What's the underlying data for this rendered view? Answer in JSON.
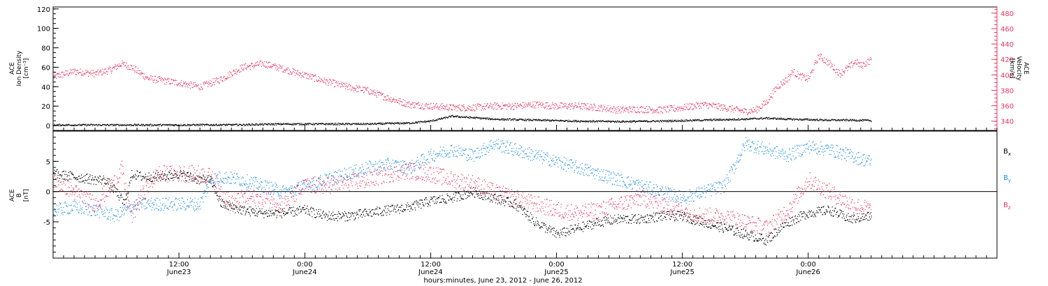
{
  "colors": {
    "black": "#000000",
    "blue": "#1f8fe6",
    "pink": "#e8345f"
  },
  "chart_data": [
    {
      "type": "scatter",
      "panel": "top",
      "ylabel": [
        "ACE",
        "Ion Density",
        "[cm⁻³]"
      ],
      "ylabel2": [
        "ACE",
        "Velocity",
        "[km/s]"
      ],
      "ylim": [
        -5,
        122
      ],
      "y2lim": [
        328,
        488
      ],
      "yticks": [
        0,
        20,
        40,
        60,
        80,
        100,
        120
      ],
      "y2ticks": [
        340,
        360,
        380,
        400,
        420,
        440,
        460,
        480
      ],
      "series": [
        {
          "axis": "left",
          "color": "black",
          "x": [
            0,
            6,
            12,
            18,
            22,
            26,
            30,
            34,
            36,
            38,
            42,
            46,
            50,
            54,
            58,
            60,
            62,
            64,
            66,
            68,
            70,
            72,
            74,
            76,
            78
          ],
          "y": [
            1,
            1,
            1,
            1.2,
            2,
            2,
            2,
            3,
            5,
            10,
            7,
            6,
            5,
            4.5,
            5,
            5.5,
            6,
            6.5,
            7,
            8,
            7,
            6.5,
            6,
            6,
            5.5
          ]
        },
        {
          "axis": "right",
          "color": "pink",
          "x": [
            0,
            2,
            4,
            5.5,
            6.5,
            7.5,
            9,
            12,
            14,
            16,
            18,
            20,
            22,
            24,
            26,
            28,
            30,
            32,
            34,
            36,
            38,
            40,
            42,
            44,
            46,
            48,
            50,
            52,
            54,
            56,
            58,
            60,
            62,
            64,
            66,
            67,
            68,
            69,
            70,
            70.5,
            71,
            72,
            73,
            74,
            75,
            76,
            76.5,
            77,
            78
          ],
          "y": [
            398,
            405,
            402,
            407,
            415,
            410,
            396,
            390,
            385,
            395,
            410,
            415,
            408,
            400,
            392,
            385,
            380,
            370,
            362,
            360,
            358,
            358,
            360,
            360,
            362,
            360,
            360,
            358,
            355,
            356,
            355,
            358,
            362,
            358,
            353,
            355,
            365,
            385,
            395,
            405,
            400,
            395,
            425,
            415,
            402,
            412,
            418,
            412,
            420
          ]
        }
      ]
    },
    {
      "type": "scatter",
      "panel": "bottom",
      "ylabel": [
        "ACE",
        "B",
        "[nT]"
      ],
      "ylim": [
        -11,
        10
      ],
      "yticks": [
        -5,
        0,
        5
      ],
      "legend": [
        {
          "label": "B",
          "sub": "x",
          "color": "black"
        },
        {
          "label": "B",
          "sub": "y",
          "color": "blue"
        },
        {
          "label": "B",
          "sub": "z",
          "color": "pink"
        }
      ],
      "series": [
        {
          "name": "Bx",
          "color": "black",
          "x": [
            0,
            2,
            4,
            5,
            6,
            6.8,
            7.5,
            8.5,
            10,
            12,
            14,
            15,
            16,
            18,
            20,
            22,
            24,
            26,
            28,
            30,
            32,
            34,
            36,
            38,
            40,
            42,
            44,
            46,
            48,
            50,
            51,
            52,
            54,
            56,
            58,
            60,
            62,
            64,
            66,
            68,
            70,
            72,
            74,
            76,
            78
          ],
          "y": [
            3,
            2.5,
            2,
            2,
            0,
            -2,
            3,
            2.5,
            2.5,
            3,
            2,
            2,
            -2,
            -3,
            -3.5,
            -3.5,
            -3,
            -4,
            -4,
            -3.5,
            -3,
            -2.5,
            -1.5,
            -1,
            0,
            -1,
            -2,
            -5,
            -7,
            -6,
            -5.5,
            -5,
            -4.5,
            -4.5,
            -4,
            -4,
            -5,
            -6,
            -7,
            -8,
            -5,
            -3.5,
            -3,
            -4.5,
            -4
          ]
        },
        {
          "name": "By",
          "color": "blue",
          "x": [
            0,
            2,
            4,
            5,
            6,
            7,
            8,
            9,
            10,
            12,
            14,
            15,
            16,
            18,
            20,
            22,
            24,
            26,
            28,
            30,
            32,
            34,
            35,
            36,
            38,
            40,
            42,
            44,
            46,
            48,
            50,
            52,
            54,
            56,
            58,
            60,
            62,
            64,
            66,
            68,
            70,
            72,
            74,
            76,
            78
          ],
          "y": [
            -3,
            -2.5,
            -3,
            -3.5,
            -4,
            -3,
            -2,
            -2,
            -2,
            -2,
            -2,
            2,
            2.5,
            2,
            1,
            0,
            1,
            2,
            3,
            4,
            4.5,
            4,
            5,
            6,
            7,
            6,
            8,
            7,
            6,
            5,
            4,
            3,
            2,
            1,
            0,
            -1,
            0,
            1,
            8,
            7,
            6,
            7.5,
            7,
            6,
            5
          ]
        },
        {
          "name": "Bz",
          "color": "pink",
          "x": [
            0,
            2,
            3,
            4,
            5,
            6,
            6.5,
            7,
            7.5,
            8,
            9,
            10,
            12,
            14,
            15,
            16,
            17,
            18,
            20,
            22,
            24,
            26,
            28,
            30,
            32,
            34,
            36,
            38,
            40,
            42,
            44,
            46,
            48,
            50,
            52,
            54,
            56,
            58,
            60,
            62,
            64,
            66,
            68,
            70,
            72,
            74,
            76,
            78
          ],
          "y": [
            2,
            0,
            -1,
            -2,
            0,
            2,
            4,
            -1,
            -4,
            -2,
            1,
            3,
            3,
            3,
            2.5,
            0,
            -2,
            -1,
            -1,
            -2,
            1,
            1,
            1.5,
            2,
            3,
            3.5,
            3,
            2,
            1.5,
            0,
            -1,
            -2,
            -3,
            -3.5,
            -3,
            -2,
            -1,
            -2,
            -3,
            -4,
            -4,
            -5,
            -6,
            -3,
            2,
            0,
            -2,
            -3
          ]
        }
      ]
    }
  ],
  "xaxis": {
    "xlim": [
      0,
      90
    ],
    "ticks": [
      {
        "x": 12,
        "time": "12:00",
        "date": "June23"
      },
      {
        "x": 24,
        "time": "0:00",
        "date": "June24"
      },
      {
        "x": 36,
        "time": "12:00",
        "date": "June24"
      },
      {
        "x": 48,
        "time": "0:00",
        "date": "June25"
      },
      {
        "x": 60,
        "time": "12:00",
        "date": "June25"
      },
      {
        "x": 72,
        "time": "0:00",
        "date": "June26"
      }
    ],
    "label": "hours:minutes, June 23, 2012 - June 26, 2012"
  }
}
